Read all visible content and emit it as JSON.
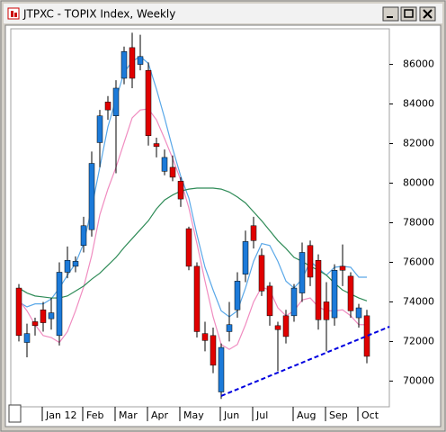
{
  "chart_data": {
    "type": "candlestick",
    "title": "JTPXC - TOPIX Index, Weekly",
    "categories": [
      null,
      null,
      null,
      "Jan 12",
      null,
      null,
      null,
      null,
      "Feb",
      null,
      null,
      null,
      "Mar",
      null,
      null,
      null,
      "Apr",
      null,
      null,
      null,
      "May",
      null,
      null,
      null,
      null,
      "Jun",
      null,
      null,
      null,
      "Jul",
      null,
      null,
      null,
      null,
      "Aug",
      null,
      null,
      null,
      "Sep",
      null,
      null,
      null,
      "Oct",
      null
    ],
    "open": [
      74700,
      71950,
      73000,
      73600,
      73150,
      72300,
      75500,
      75800,
      76850,
      77650,
      82050,
      84100,
      83400,
      85300,
      86850,
      86000,
      85700,
      82000,
      80600,
      80800,
      80100,
      77700,
      75800,
      72400,
      72300,
      69450,
      72500,
      73600,
      75400,
      77850,
      76350,
      74800,
      72800,
      73300,
      73300,
      74450,
      76850,
      76100,
      74000,
      73200,
      75800,
      75300,
      73200,
      73300
    ],
    "high": [
      74900,
      72900,
      73200,
      74000,
      74200,
      76000,
      76800,
      76300,
      78300,
      81600,
      83700,
      84400,
      85200,
      86900,
      87600,
      87500,
      86100,
      82300,
      81700,
      81400,
      80300,
      77800,
      76000,
      73000,
      72700,
      71900,
      74000,
      75500,
      77600,
      78300,
      76700,
      75000,
      73000,
      73600,
      74900,
      77000,
      77100,
      76400,
      75000,
      75900,
      76900,
      75500,
      73900,
      73600
    ],
    "low": [
      72000,
      71200,
      72300,
      72500,
      72600,
      71800,
      75200,
      75500,
      76500,
      77300,
      80800,
      83200,
      80500,
      85000,
      84800,
      85700,
      81900,
      81300,
      80400,
      80100,
      78800,
      75600,
      72200,
      71500,
      70400,
      69100,
      72000,
      73200,
      75000,
      76700,
      74300,
      72800,
      70500,
      71900,
      73000,
      74000,
      74800,
      72600,
      71500,
      72800,
      74800,
      73200,
      72700,
      70900
    ],
    "close": [
      72300,
      72400,
      72800,
      72950,
      73450,
      75500,
      76100,
      76050,
      77850,
      81000,
      83400,
      83700,
      84800,
      86650,
      85300,
      86400,
      82400,
      81850,
      81300,
      80300,
      79200,
      75800,
      72500,
      72050,
      70800,
      71700,
      72850,
      75050,
      77050,
      77100,
      74550,
      73300,
      72600,
      72250,
      74700,
      76500,
      75250,
      73100,
      73100,
      75600,
      75600,
      73550,
      73700,
      71250
    ],
    "up_color": "#1c7ad9",
    "down_color": "#e00000",
    "lines": [
      {
        "color": "#5aa8e8",
        "values": [
          74000,
          73750,
          73900,
          73900,
          74150,
          74700,
          75350,
          75950,
          76950,
          78750,
          80800,
          82850,
          84250,
          85600,
          86150,
          86400,
          86050,
          84750,
          83300,
          81750,
          80350,
          79250,
          77400,
          75750,
          74600,
          73550,
          73250,
          73550,
          74700,
          76050,
          76950,
          76850,
          76050,
          75050,
          74700,
          75150,
          76050,
          75700,
          75350,
          75750,
          75800,
          75750,
          75250,
          75250
        ]
      },
      {
        "color": "#f08cc0",
        "values": [
          74100,
          73550,
          72850,
          72300,
          72200,
          71950,
          72500,
          73550,
          74750,
          76350,
          78400,
          79700,
          80800,
          82050,
          83300,
          83700,
          83750,
          83200,
          82250,
          81250,
          80150,
          78750,
          76950,
          75050,
          73250,
          71850,
          71600,
          71850,
          72850,
          74000,
          74750,
          74600,
          73700,
          73300,
          73550,
          74100,
          74200,
          73750,
          73550,
          73550,
          73600,
          73300,
          72850,
          72850
        ]
      },
      {
        "color": "#2e8b57",
        "values": [
          74700,
          74450,
          74300,
          74250,
          74200,
          74200,
          74300,
          74550,
          74800,
          75150,
          75450,
          75850,
          76250,
          76750,
          77200,
          77650,
          78100,
          78700,
          79150,
          79400,
          79600,
          79700,
          79750,
          79750,
          79750,
          79700,
          79550,
          79300,
          79000,
          78550,
          78100,
          77600,
          77100,
          76700,
          76250,
          76050,
          75800,
          75600,
          75350,
          74950,
          74600,
          74400,
          74200,
          74050
        ]
      }
    ],
    "trend_line": {
      "x": [
        25,
        45.8
      ],
      "values": [
        69250,
        72750
      ],
      "color": "#0000e0"
    },
    "ylim": [
      68700,
      87800
    ],
    "yticks": [
      70000,
      72000,
      74000,
      76000,
      78000,
      80000,
      82000,
      84000,
      86000
    ]
  }
}
